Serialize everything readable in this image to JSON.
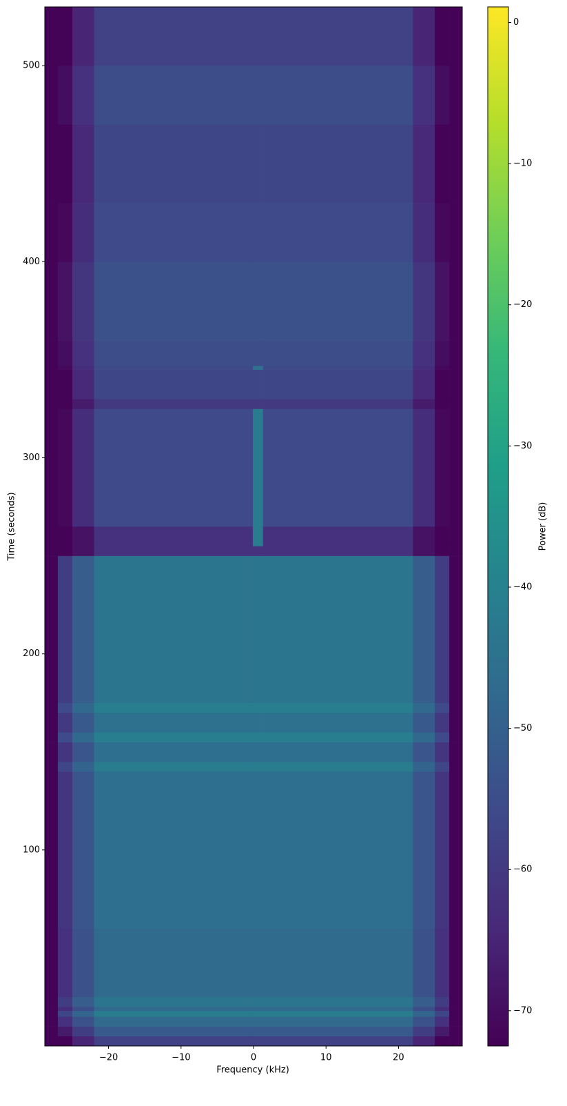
{
  "chart_data": {
    "type": "spectrogram",
    "xlabel": "Frequency (kHz)",
    "ylabel": "Time (seconds)",
    "colorbar_label": "Power (dB)",
    "colormap": "viridis",
    "xlim": [
      -28.8,
      28.8
    ],
    "xticks": [
      {
        "value": -20,
        "label": "−20"
      },
      {
        "value": -10,
        "label": "−10"
      },
      0,
      10,
      20
    ],
    "ylim": [
      0,
      530
    ],
    "yticks": [
      100,
      200,
      300,
      400,
      500
    ],
    "clim": [
      -72.5,
      1.1
    ],
    "cticks": [
      {
        "value": -70,
        "label": "−70"
      },
      {
        "value": -60,
        "label": "−60"
      },
      {
        "value": -50,
        "label": "−50"
      },
      {
        "value": -40,
        "label": "−40"
      },
      {
        "value": -30,
        "label": "−30"
      },
      {
        "value": -20,
        "label": "−20"
      },
      {
        "value": -10,
        "label": "−10"
      },
      0
    ],
    "xbins": [
      -28.8,
      -27,
      -25,
      -22,
      -0.1,
      1.3,
      22,
      25,
      27,
      28.8
    ],
    "ybins": [
      0,
      5,
      10,
      15,
      18,
      20,
      25,
      60,
      140,
      145,
      155,
      160,
      170,
      175,
      250,
      255,
      265,
      325,
      330,
      345,
      347,
      360,
      400,
      430,
      470,
      500,
      530
    ],
    "values": [
      [
        -72,
        -72,
        -65,
        -58,
        -58,
        -58,
        -65,
        -72,
        -72
      ],
      [
        -72,
        -67,
        -59,
        -52,
        -52,
        -52,
        -59,
        -67,
        -72
      ],
      [
        -72,
        -62,
        -54,
        -47,
        -47,
        -47,
        -54,
        -62,
        -72
      ],
      [
        -72,
        -57,
        -49,
        -42,
        -42,
        -42,
        -49,
        -57,
        -72
      ],
      [
        -72,
        -63,
        -55,
        -48,
        -48,
        -48,
        -55,
        -63,
        -72
      ],
      [
        -72,
        -59,
        -51,
        -44,
        -44,
        -44,
        -51,
        -59,
        -72
      ],
      [
        -72,
        -62,
        -54,
        -47,
        -47,
        -47,
        -54,
        -62,
        -72
      ],
      [
        -72,
        -61,
        -53,
        -46,
        -46,
        -46,
        -53,
        -61,
        -72
      ],
      [
        -72,
        -57,
        -49,
        -42,
        -42,
        -42,
        -49,
        -57,
        -72
      ],
      [
        -72,
        -61,
        -53,
        -46,
        -46,
        -46,
        -53,
        -61,
        -72
      ],
      [
        -72,
        -56,
        -48,
        -41,
        -41,
        -41,
        -48,
        -56,
        -72
      ],
      [
        -72,
        -60,
        -52,
        -45,
        -45,
        -45,
        -52,
        -60,
        -72
      ],
      [
        -72,
        -56,
        -48,
        -41,
        -41,
        -41,
        -48,
        -56,
        -72
      ],
      [
        -72,
        -59,
        -51,
        -44,
        -44,
        -44,
        -51,
        -59,
        -72
      ],
      [
        -72,
        -72,
        -69,
        -62,
        -62,
        -62,
        -69,
        -72,
        -72
      ],
      [
        -72,
        -72,
        -69,
        -62,
        -42,
        -62,
        -69,
        -72,
        -72
      ],
      [
        -72,
        -71,
        -63,
        -56,
        -42,
        -56,
        -63,
        -71,
        -72
      ],
      [
        -72,
        -72,
        -67,
        -60,
        -60,
        -60,
        -67,
        -72,
        -72
      ],
      [
        -72,
        -72,
        -64,
        -57,
        -57,
        -57,
        -64,
        -72,
        -72
      ],
      [
        -72,
        -71,
        -63,
        -56,
        -45,
        -56,
        -63,
        -71,
        -72
      ],
      [
        -72,
        -70,
        -62,
        -55,
        -55,
        -55,
        -62,
        -70,
        -72
      ],
      [
        -72,
        -69,
        -61,
        -54,
        -54,
        -54,
        -61,
        -69,
        -72
      ],
      [
        -72,
        -71,
        -63,
        -56,
        -56,
        -56,
        -63,
        -71,
        -72
      ],
      [
        -72,
        -72,
        -64,
        -57,
        -57,
        -57,
        -64,
        -72,
        -72
      ],
      [
        -72,
        -70,
        -62,
        -55,
        -55,
        -55,
        -62,
        -70,
        -72
      ],
      [
        -72,
        -72,
        -65,
        -58,
        -58,
        -58,
        -65,
        -72,
        -72
      ]
    ]
  }
}
